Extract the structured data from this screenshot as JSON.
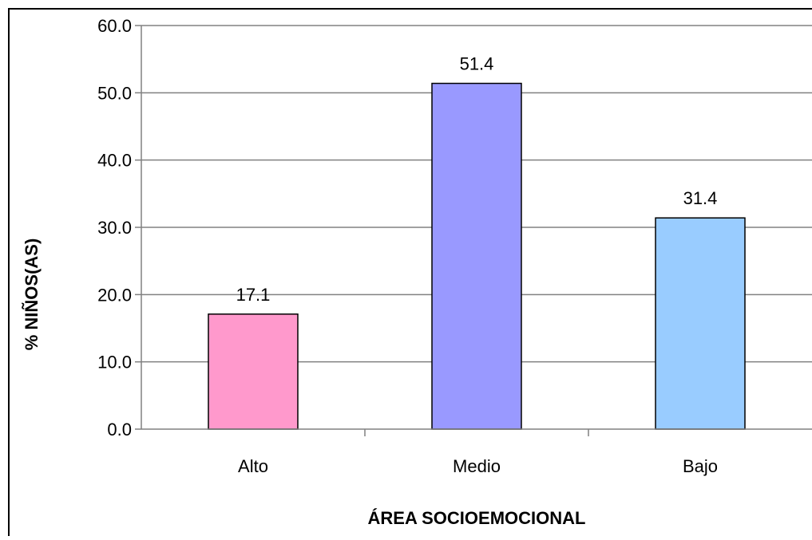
{
  "chart_data": {
    "type": "bar",
    "title": "",
    "xlabel": "ÁREA SOCIOEMOCIONAL",
    "ylabel": "% NIÑOS(AS)",
    "categories": [
      "Alto",
      "Medio",
      "Bajo"
    ],
    "values": [
      17.1,
      51.4,
      31.4
    ],
    "value_labels": [
      "17.1",
      "51.4",
      "31.4"
    ],
    "bar_colors": [
      "#ff99cc",
      "#9999ff",
      "#99ccff"
    ],
    "ylim": [
      0,
      60
    ],
    "yticks": [
      0,
      10,
      20,
      30,
      40,
      50,
      60
    ],
    "ytick_labels": [
      "0.0",
      "10.0",
      "20.0",
      "30.0",
      "40.0",
      "50.0",
      "60.0"
    ],
    "grid": true,
    "legend": "none"
  }
}
